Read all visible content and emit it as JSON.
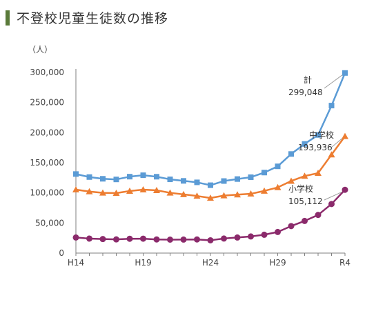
{
  "title": "不登校児童生徒数の推移",
  "chart_data": {
    "type": "line",
    "title": "不登校児童生徒数の推移",
    "y_unit": "（人）",
    "x": [
      "H14",
      "H15",
      "H16",
      "H17",
      "H18",
      "H19",
      "H20",
      "H21",
      "H22",
      "H23",
      "H24",
      "H25",
      "H26",
      "H27",
      "H28",
      "H29",
      "H30",
      "R1",
      "R2",
      "R3",
      "R4"
    ],
    "x_tick_labels": [
      "H14",
      "H19",
      "H24",
      "H29",
      "R4"
    ],
    "y_ticks": [
      "0",
      "50,000",
      "100,000",
      "150,000",
      "200,000",
      "250,000",
      "300,000"
    ],
    "ylim": [
      0,
      300000
    ],
    "grid": false,
    "series": [
      {
        "name": "計",
        "color": "#5b9bd5",
        "marker": "square",
        "values": [
          131252,
          126226,
          123358,
          122287,
          126894,
          129255,
          126805,
          122432,
          119891,
          117458,
          112689,
          119617,
          122897,
          125991,
          133683,
          144031,
          164528,
          181272,
          196127,
          244940,
          299048
        ],
        "end_label": "299,048"
      },
      {
        "name": "中学校",
        "color": "#ed7d31",
        "marker": "triangle",
        "values": [
          105383,
          102149,
          100040,
          99578,
          103069,
          105328,
          104153,
          100105,
          97428,
          94836,
          91446,
          95442,
          97033,
          98408,
          103235,
          108999,
          119687,
          127922,
          132777,
          163442,
          193936
        ],
        "end_label": "193,936"
      },
      {
        "name": "小学校",
        "color": "#8b2a6b",
        "marker": "circle",
        "values": [
          25869,
          24077,
          23318,
          22709,
          23825,
          23927,
          22652,
          22327,
          22463,
          22622,
          21243,
          24175,
          25864,
          27583,
          30448,
          35032,
          44841,
          53350,
          63350,
          81498,
          105112
        ],
        "end_label": "105,112"
      }
    ]
  }
}
